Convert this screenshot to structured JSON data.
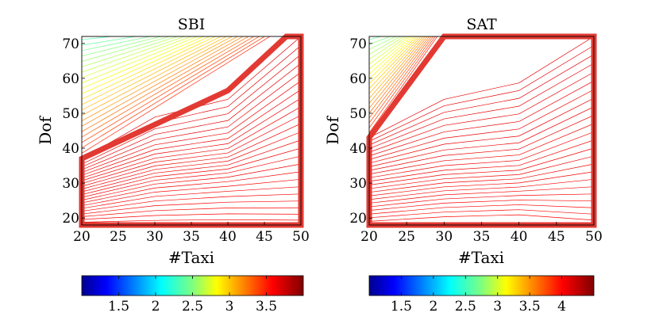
{
  "chart_data": [
    {
      "type": "contour",
      "title": "SBI",
      "xlabel": "#Taxi",
      "ylabel": "Dof",
      "x_ticks": [
        20,
        25,
        30,
        35,
        40,
        45,
        50
      ],
      "y_ticks": [
        20,
        30,
        40,
        50,
        60,
        70
      ],
      "xlim": [
        20,
        50
      ],
      "ylim": [
        18,
        72
      ],
      "colormap": "jet",
      "colorbar": {
        "ticks": [
          1.5,
          2,
          2.5,
          3,
          3.5
        ],
        "range": [
          1.0,
          4.0
        ],
        "position": "bottom"
      },
      "highlight_polygon": [
        [
          20,
          18
        ],
        [
          20,
          37
        ],
        [
          40,
          56.5
        ],
        [
          48,
          72
        ],
        [
          50,
          72
        ],
        [
          50,
          18
        ]
      ],
      "highlight_color": "#e23a33"
    },
    {
      "type": "contour",
      "title": "SAT",
      "xlabel": "#Taxi",
      "ylabel": "Dof",
      "x_ticks": [
        20,
        25,
        30,
        35,
        40,
        45,
        50
      ],
      "y_ticks": [
        20,
        30,
        40,
        50,
        60,
        70
      ],
      "xlim": [
        20,
        50
      ],
      "ylim": [
        18,
        72
      ],
      "colormap": "jet",
      "colorbar": {
        "ticks": [
          1.5,
          2,
          2.5,
          3,
          3.5,
          4
        ],
        "range": [
          1.0,
          4.5
        ],
        "position": "bottom"
      },
      "highlight_polygon": [
        [
          20,
          18
        ],
        [
          20,
          43
        ],
        [
          30,
          72
        ],
        [
          50,
          72
        ],
        [
          50,
          18
        ]
      ],
      "highlight_color": "#e23a33"
    }
  ]
}
